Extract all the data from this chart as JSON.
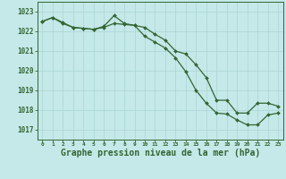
{
  "line1_x": [
    0,
    1,
    2,
    3,
    4,
    5,
    6,
    7,
    8,
    9,
    10,
    11,
    12,
    13,
    14,
    15,
    16,
    17,
    18,
    19,
    20,
    21,
    22,
    23
  ],
  "line1_y": [
    1022.5,
    1022.7,
    1022.4,
    1022.2,
    1022.15,
    1022.1,
    1022.2,
    1022.4,
    1022.35,
    1022.3,
    1021.75,
    1021.45,
    1021.15,
    1020.65,
    1019.95,
    1019.0,
    1018.35,
    1017.85,
    1017.8,
    1017.5,
    1017.25,
    1017.25,
    1017.75,
    1017.85
  ],
  "line2_x": [
    0,
    1,
    2,
    3,
    4,
    5,
    6,
    7,
    8,
    9,
    10,
    11,
    12,
    13,
    14,
    15,
    16,
    17,
    18,
    19,
    20,
    21,
    22,
    23
  ],
  "line2_y": [
    1022.5,
    1022.7,
    1022.45,
    1022.2,
    1022.15,
    1022.1,
    1022.25,
    1022.8,
    1022.4,
    1022.3,
    1022.2,
    1021.85,
    1021.55,
    1021.0,
    1020.85,
    1020.3,
    1019.65,
    1018.5,
    1018.5,
    1017.85,
    1017.85,
    1018.35,
    1018.35,
    1018.2
  ],
  "line_color": "#336633",
  "bg_color": "#c5e8e8",
  "grid_color": "#aad4d4",
  "text_color": "#336633",
  "xlabel": "Graphe pression niveau de la mer (hPa)",
  "ylim": [
    1016.5,
    1023.5
  ],
  "xlim": [
    -0.5,
    23.5
  ],
  "yticks": [
    1017,
    1018,
    1019,
    1020,
    1021,
    1022,
    1023
  ],
  "xticks": [
    0,
    1,
    2,
    3,
    4,
    5,
    6,
    7,
    8,
    9,
    10,
    11,
    12,
    13,
    14,
    15,
    16,
    17,
    18,
    19,
    20,
    21,
    22,
    23
  ]
}
